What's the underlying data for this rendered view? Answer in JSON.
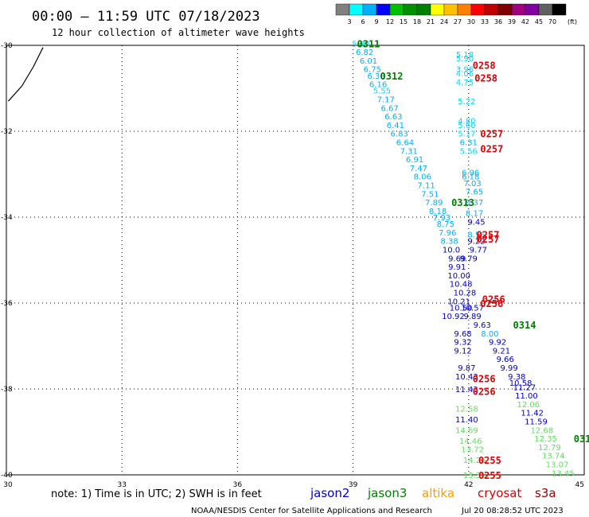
{
  "title": "00:00 – 11:59 UTC 07/18/2023",
  "subtitle": "12 hour collection of altimeter wave heights",
  "colorbar": {
    "colors": [
      "#808080",
      "#00ffff",
      "#00b0ff",
      "#0000ff",
      "#00c000",
      "#009000",
      "#008000",
      "#ffff00",
      "#ffc000",
      "#ff8000",
      "#ff0000",
      "#c00000",
      "#800000",
      "#a00080",
      "#8000a0",
      "#606060",
      "#000000"
    ],
    "labels": [
      "3",
      "6",
      "9",
      "12",
      "15",
      "18",
      "21",
      "24",
      "27",
      "30",
      "33",
      "36",
      "39",
      "42",
      "45",
      "70"
    ],
    "unit": "(ft)"
  },
  "chart_data": {
    "type": "scatter",
    "xlim": [
      30,
      45
    ],
    "ylim": [
      -40,
      -30
    ],
    "xticks": [
      "30",
      "33",
      "36",
      "39",
      "42",
      "45"
    ],
    "yticks": [
      "-30",
      "-32",
      "-34",
      "-36",
      "-38",
      "-40"
    ],
    "coast": [
      [
        30.05,
        -31.3
      ],
      [
        30.4,
        -30.95
      ],
      [
        30.7,
        -30.5
      ],
      [
        30.95,
        -30.05
      ]
    ],
    "points": [
      {
        "lon": 39.2,
        "lat": -29.95,
        "v": "5.90",
        "sat": "jason3",
        "c": "#00d8ff"
      },
      {
        "lon": 39.3,
        "lat": -30.15,
        "v": "6.82",
        "sat": "jason3",
        "c": "#00b0ff"
      },
      {
        "lon": 39.4,
        "lat": -30.35,
        "v": "6.01",
        "sat": "jason3",
        "c": "#00b0ff"
      },
      {
        "lon": 39.5,
        "lat": -30.55,
        "v": "6.75",
        "sat": "jason3",
        "c": "#00b0ff"
      },
      {
        "lon": 39.6,
        "lat": -30.7,
        "v": "6.30",
        "sat": "jason3",
        "c": "#00b0ff"
      },
      {
        "lon": 39.65,
        "lat": -30.9,
        "v": "6.16",
        "sat": "jason3",
        "c": "#00b0ff"
      },
      {
        "lon": 39.75,
        "lat": -31.05,
        "v": "5.55",
        "sat": "jason3",
        "c": "#00d8ff"
      },
      {
        "lon": 39.85,
        "lat": -31.25,
        "v": "7.17",
        "sat": "jason3",
        "c": "#00b0ff"
      },
      {
        "lon": 39.95,
        "lat": -31.45,
        "v": "6.67",
        "sat": "jason3",
        "c": "#00b0ff"
      },
      {
        "lon": 40.05,
        "lat": -31.65,
        "v": "6.63",
        "sat": "jason3",
        "c": "#00b0ff"
      },
      {
        "lon": 40.1,
        "lat": -31.85,
        "v": "6.41",
        "sat": "jason3",
        "c": "#00b0ff"
      },
      {
        "lon": 40.2,
        "lat": -32.05,
        "v": "6.83",
        "sat": "jason3",
        "c": "#00b0ff"
      },
      {
        "lon": 40.35,
        "lat": -32.25,
        "v": "6.64",
        "sat": "jason3",
        "c": "#00b0ff"
      },
      {
        "lon": 40.45,
        "lat": -32.45,
        "v": "7.31",
        "sat": "jason3",
        "c": "#00b0ff"
      },
      {
        "lon": 40.6,
        "lat": -32.65,
        "v": "6.91",
        "sat": "jason3",
        "c": "#00b0ff"
      },
      {
        "lon": 40.7,
        "lat": -32.85,
        "v": "7.47",
        "sat": "jason3",
        "c": "#00b0ff"
      },
      {
        "lon": 40.8,
        "lat": -33.05,
        "v": "8.06",
        "sat": "jason3",
        "c": "#00b0ff"
      },
      {
        "lon": 40.9,
        "lat": -33.25,
        "v": "7.11",
        "sat": "jason3",
        "c": "#00b0ff"
      },
      {
        "lon": 41.0,
        "lat": -33.45,
        "v": "7.51",
        "sat": "jason3",
        "c": "#00b0ff"
      },
      {
        "lon": 41.1,
        "lat": -33.65,
        "v": "7.89",
        "sat": "jason3",
        "c": "#00b0ff"
      },
      {
        "lon": 41.2,
        "lat": -33.85,
        "v": "8.18",
        "sat": "jason3",
        "c": "#00b0ff"
      },
      {
        "lon": 41.3,
        "lat": -34.0,
        "v": "7.93",
        "sat": "jason3",
        "c": "#00b0ff"
      },
      {
        "lon": 41.4,
        "lat": -34.15,
        "v": "8.75",
        "sat": "jason3",
        "c": "#00b0ff"
      },
      {
        "lon": 41.45,
        "lat": -34.35,
        "v": "7.96",
        "sat": "jason3",
        "c": "#00b0ff"
      },
      {
        "lon": 41.5,
        "lat": -34.55,
        "v": "8.38",
        "sat": "jason3",
        "c": "#00b0ff"
      },
      {
        "lon": 41.55,
        "lat": -34.75,
        "v": "10.0",
        "sat": "jason2",
        "c": "#0000c0"
      },
      {
        "lon": 41.7,
        "lat": -34.95,
        "v": "9.69",
        "sat": "jason2",
        "c": "#0000c0"
      },
      {
        "lon": 41.7,
        "lat": -35.15,
        "v": "9.91",
        "sat": "jason2",
        "c": "#0000c0"
      },
      {
        "lon": 41.75,
        "lat": -35.35,
        "v": "10.00",
        "sat": "jason2",
        "c": "#0000c0"
      },
      {
        "lon": 41.8,
        "lat": -35.55,
        "v": "10.48",
        "sat": "jason2",
        "c": "#0000c0"
      },
      {
        "lon": 41.9,
        "lat": -35.75,
        "v": "10.28",
        "sat": "jason2",
        "c": "#0000c0"
      },
      {
        "lon": 41.75,
        "lat": -35.95,
        "v": "10.21",
        "sat": "jason2",
        "c": "#0000c0"
      },
      {
        "lon": 41.8,
        "lat": -36.1,
        "v": "10.50",
        "sat": "jason2",
        "c": "#0000c0"
      },
      {
        "lon": 42.1,
        "lat": -36.1,
        "v": "10.57",
        "sat": "jason2",
        "c": "#0000c0"
      },
      {
        "lon": 41.6,
        "lat": -36.3,
        "v": "10.92",
        "sat": "jason2",
        "c": "#0000c0"
      },
      {
        "lon": 42.1,
        "lat": -36.3,
        "v": "9.89",
        "sat": "jason2",
        "c": "#0000c0"
      },
      {
        "lon": 42.35,
        "lat": -36.5,
        "v": "9.63",
        "sat": "jason2",
        "c": "#0000c0"
      },
      {
        "lon": 41.85,
        "lat": -36.7,
        "v": "9.68",
        "sat": "jason2",
        "c": "#0000c0"
      },
      {
        "lon": 42.55,
        "lat": -36.7,
        "v": "8.00",
        "sat": "jason3",
        "c": "#00b0ff"
      },
      {
        "lon": 41.85,
        "lat": -36.9,
        "v": "9.32",
        "sat": "jason2",
        "c": "#0000c0"
      },
      {
        "lon": 42.75,
        "lat": -36.9,
        "v": "9.92",
        "sat": "jason2",
        "c": "#0000c0"
      },
      {
        "lon": 41.85,
        "lat": -37.1,
        "v": "9.12",
        "sat": "jason2",
        "c": "#0000c0"
      },
      {
        "lon": 42.85,
        "lat": -37.1,
        "v": "9.21",
        "sat": "jason2",
        "c": "#0000c0"
      },
      {
        "lon": 42.95,
        "lat": -37.3,
        "v": "9.66",
        "sat": "jason2",
        "c": "#0000c0"
      },
      {
        "lon": 43.05,
        "lat": -37.5,
        "v": "9.99",
        "sat": "jason2",
        "c": "#0000c0"
      },
      {
        "lon": 41.95,
        "lat": -37.5,
        "v": "9.87",
        "sat": "jason2",
        "c": "#0000c0"
      },
      {
        "lon": 43.25,
        "lat": -37.7,
        "v": "9.38",
        "sat": "jason2",
        "c": "#0000c0"
      },
      {
        "lon": 41.95,
        "lat": -37.7,
        "v": "10.43",
        "sat": "jason2",
        "c": "#0000c0"
      },
      {
        "lon": 43.35,
        "lat": -37.85,
        "v": "10.58",
        "sat": "jason2",
        "c": "#0000c0"
      },
      {
        "lon": 43.45,
        "lat": -37.95,
        "v": "11.27",
        "sat": "jason2",
        "c": "#0000c0"
      },
      {
        "lon": 41.95,
        "lat": -38.0,
        "v": "11.43",
        "sat": "jason2",
        "c": "#0000c0"
      },
      {
        "lon": 43.5,
        "lat": -38.15,
        "v": "11.00",
        "sat": "jason2",
        "c": "#0000c0"
      },
      {
        "lon": 43.55,
        "lat": -38.35,
        "v": "12.06",
        "sat": "altika",
        "c": "#60e060"
      },
      {
        "lon": 41.95,
        "lat": -38.45,
        "v": "12.58",
        "sat": "altika",
        "c": "#60e060"
      },
      {
        "lon": 43.65,
        "lat": -38.55,
        "v": "11.42",
        "sat": "jason2",
        "c": "#0000c0"
      },
      {
        "lon": 41.95,
        "lat": -38.7,
        "v": "11.40",
        "sat": "jason2",
        "c": "#0000c0"
      },
      {
        "lon": 43.75,
        "lat": -38.75,
        "v": "11.59",
        "sat": "jason2",
        "c": "#0000c0"
      },
      {
        "lon": 43.9,
        "lat": -38.95,
        "v": "12.68",
        "sat": "altika",
        "c": "#60e060"
      },
      {
        "lon": 41.95,
        "lat": -38.95,
        "v": "14.69",
        "sat": "altika",
        "c": "#60e060"
      },
      {
        "lon": 44.0,
        "lat": -39.15,
        "v": "12.35",
        "sat": "altika",
        "c": "#60e060"
      },
      {
        "lon": 42.05,
        "lat": -39.2,
        "v": "14.46",
        "sat": "altika",
        "c": "#60e060"
      },
      {
        "lon": 44.1,
        "lat": -39.35,
        "v": "12.79",
        "sat": "altika",
        "c": "#60e060"
      },
      {
        "lon": 42.1,
        "lat": -39.4,
        "v": "13.72",
        "sat": "altika",
        "c": "#60e060"
      },
      {
        "lon": 44.2,
        "lat": -39.55,
        "v": "13.74",
        "sat": "altika",
        "c": "#60e060"
      },
      {
        "lon": 42.15,
        "lat": -39.65,
        "v": "14.26",
        "sat": "altika",
        "c": "#60e060"
      },
      {
        "lon": 44.3,
        "lat": -39.75,
        "v": "13.07",
        "sat": "altika",
        "c": "#60e060"
      },
      {
        "lon": 44.45,
        "lat": -39.95,
        "v": "13.45",
        "sat": "altika",
        "c": "#60e060"
      },
      {
        "lon": 42.15,
        "lat": -40.0,
        "v": "13.31",
        "sat": "altika",
        "c": "#60e060"
      },
      {
        "lon": 41.9,
        "lat": -30.2,
        "v": "5.18",
        "sat": "jason3",
        "c": "#00d8ff"
      },
      {
        "lon": 41.9,
        "lat": -30.3,
        "v": "5.90",
        "sat": "jason3",
        "c": "#00d8ff"
      },
      {
        "lon": 41.9,
        "lat": -30.55,
        "v": "3.96",
        "sat": "jason3",
        "c": "#00d8ff"
      },
      {
        "lon": 41.9,
        "lat": -30.65,
        "v": "4.06",
        "sat": "jason3",
        "c": "#00d8ff"
      },
      {
        "lon": 41.9,
        "lat": -30.85,
        "v": "4.75",
        "sat": "jason3",
        "c": "#00d8ff"
      },
      {
        "lon": 41.95,
        "lat": -31.3,
        "v": "5.22",
        "sat": "jason3",
        "c": "#00d8ff"
      },
      {
        "lon": 41.95,
        "lat": -31.75,
        "v": "4.80",
        "sat": "jason3",
        "c": "#00d8ff"
      },
      {
        "lon": 41.95,
        "lat": -31.85,
        "v": "5.60",
        "sat": "jason3",
        "c": "#00d8ff"
      },
      {
        "lon": 41.95,
        "lat": -32.05,
        "v": "5.17",
        "sat": "jason3",
        "c": "#00d8ff"
      },
      {
        "lon": 42.0,
        "lat": -32.25,
        "v": "6.31",
        "sat": "jason3",
        "c": "#00b0ff"
      },
      {
        "lon": 42.0,
        "lat": -32.45,
        "v": "5.56",
        "sat": "jason3",
        "c": "#00d8ff"
      },
      {
        "lon": 42.05,
        "lat": -32.95,
        "v": "6.96",
        "sat": "jason3",
        "c": "#00b0ff"
      },
      {
        "lon": 42.05,
        "lat": -33.05,
        "v": "6.18",
        "sat": "jason3",
        "c": "#00b0ff"
      },
      {
        "lon": 42.1,
        "lat": -33.2,
        "v": "7.03",
        "sat": "jason3",
        "c": "#00b0ff"
      },
      {
        "lon": 42.15,
        "lat": -33.4,
        "v": "7.65",
        "sat": "jason3",
        "c": "#00b0ff"
      },
      {
        "lon": 42.15,
        "lat": -33.65,
        "v": "8.37",
        "sat": "jason3",
        "c": "#00b0ff"
      },
      {
        "lon": 42.15,
        "lat": -33.9,
        "v": "8.17",
        "sat": "jason3",
        "c": "#00b0ff"
      },
      {
        "lon": 42.2,
        "lat": -34.1,
        "v": "9.45",
        "sat": "jason2",
        "c": "#0000c0"
      },
      {
        "lon": 42.2,
        "lat": -34.4,
        "v": "8.56",
        "sat": "jason3",
        "c": "#00b0ff"
      },
      {
        "lon": 42.2,
        "lat": -34.55,
        "v": "9.22",
        "sat": "jason2",
        "c": "#0000c0"
      },
      {
        "lon": 42.25,
        "lat": -34.75,
        "v": "9.77",
        "sat": "jason2",
        "c": "#0000c0"
      },
      {
        "lon": 42.0,
        "lat": -34.95,
        "v": "9.79",
        "sat": "jason2",
        "c": "#0000c0"
      }
    ],
    "passes": [
      {
        "lon": 39.4,
        "lat": -29.95,
        "v": "0311",
        "c": "#008000"
      },
      {
        "lon": 40.0,
        "lat": -30.7,
        "v": "0312",
        "c": "#008000"
      },
      {
        "lon": 42.4,
        "lat": -30.45,
        "v": "0258",
        "c": "#e00000"
      },
      {
        "lon": 42.45,
        "lat": -30.75,
        "v": "0258",
        "c": "#e00000"
      },
      {
        "lon": 42.6,
        "lat": -32.05,
        "v": "0257",
        "c": "#e00000"
      },
      {
        "lon": 42.6,
        "lat": -32.4,
        "v": "0257",
        "c": "#e00000"
      },
      {
        "lon": 41.85,
        "lat": -33.65,
        "v": "0313",
        "c": "#008000"
      },
      {
        "lon": 42.5,
        "lat": -34.4,
        "v": "0257",
        "c": "#e00000"
      },
      {
        "lon": 42.5,
        "lat": -34.5,
        "v": "0257",
        "c": "#e00000"
      },
      {
        "lon": 42.65,
        "lat": -35.9,
        "v": "0256",
        "c": "#e00000"
      },
      {
        "lon": 42.6,
        "lat": -36.0,
        "v": "0256",
        "c": "#e00000"
      },
      {
        "lon": 43.45,
        "lat": -36.5,
        "v": "0314",
        "c": "#008000"
      },
      {
        "lon": 42.4,
        "lat": -37.75,
        "v": "0256",
        "c": "#e00000"
      },
      {
        "lon": 42.4,
        "lat": -38.05,
        "v": "0256",
        "c": "#e00000"
      },
      {
        "lon": 44.95,
        "lat": -39.15,
        "v": "031",
        "c": "#008000"
      },
      {
        "lon": 42.55,
        "lat": -39.65,
        "v": "0255",
        "c": "#e00000"
      },
      {
        "lon": 42.55,
        "lat": -40.0,
        "v": "0255",
        "c": "#e00000"
      }
    ]
  },
  "note": "note: 1) Time is in UTC; 2) SWH is in feet",
  "satellites": [
    {
      "name": "jason2",
      "color": "#0000d0"
    },
    {
      "name": "jason3",
      "color": "#008000"
    },
    {
      "name": "altika",
      "color": "#ff9900"
    },
    {
      "name": "cryosat",
      "color": "#e00000"
    },
    {
      "name": "s3a",
      "color": "#a00000"
    }
  ],
  "footer_left": "NOAA/NESDIS Center for Satellite Applications and Research",
  "footer_right": "Jul 20 08:28:52 UTC 2023"
}
